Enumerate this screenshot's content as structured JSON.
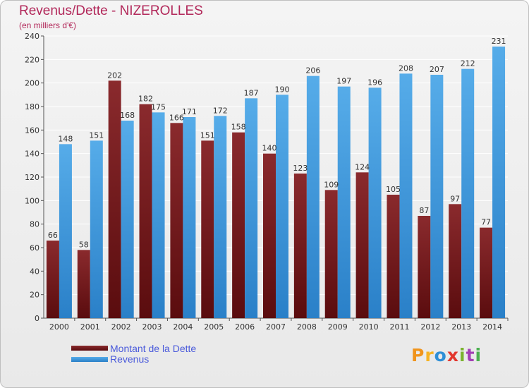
{
  "title": "Revenus/Dette - NIZEROLLES",
  "subtitle": "(en milliers d'€)",
  "logo_text": "Proxiti",
  "colors": {
    "dette": "#7a1f22",
    "dette_dark": "#5a0c0e",
    "revenus": "#4aa3e6",
    "revenus_dark": "#2a80c8",
    "title": "#b2285a",
    "legend_text": "#4a5adb",
    "grid": "#ffffff"
  },
  "chart_data": {
    "type": "bar",
    "title": "Revenus/Dette - NIZEROLLES",
    "subtitle": "(en milliers d'€)",
    "categories": [
      "2000",
      "2001",
      "2002",
      "2003",
      "2004",
      "2005",
      "2006",
      "2007",
      "2008",
      "2009",
      "2010",
      "2011",
      "2012",
      "2013",
      "2014"
    ],
    "series": [
      {
        "name": "Montant de la Dette",
        "values": [
          66,
          58,
          202,
          182,
          166,
          151,
          158,
          140,
          123,
          109,
          124,
          105,
          87,
          97,
          77
        ]
      },
      {
        "name": "Revenus",
        "values": [
          148,
          151,
          168,
          175,
          171,
          172,
          187,
          190,
          206,
          197,
          196,
          208,
          207,
          212,
          231
        ]
      }
    ],
    "ylim": [
      0,
      240
    ],
    "yticks": [
      0,
      20,
      40,
      60,
      80,
      100,
      120,
      140,
      160,
      180,
      200,
      220,
      240
    ],
    "grid": true,
    "legend_position": "bottom-left"
  },
  "legend": [
    {
      "label": "Montant de la Dette"
    },
    {
      "label": "Revenus"
    }
  ]
}
